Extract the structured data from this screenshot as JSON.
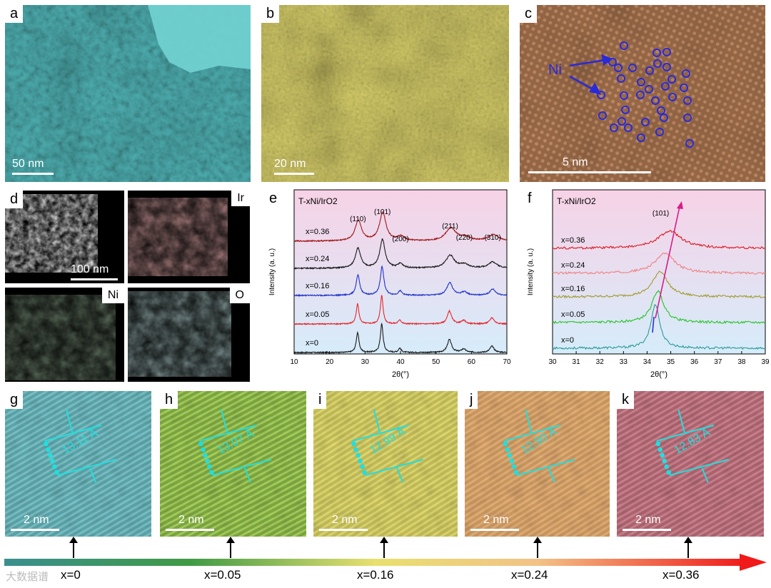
{
  "panels": {
    "a": {
      "label": "a",
      "scale": "50 nm"
    },
    "b": {
      "label": "b",
      "scale": "20 nm"
    },
    "c": {
      "label": "c",
      "scale": "5 nm",
      "annotation": "Ni"
    },
    "d": {
      "label": "d",
      "scale": "100 nm",
      "maps": [
        "Ir",
        "Ni",
        "O"
      ]
    },
    "e": {
      "label": "e"
    },
    "f": {
      "label": "f"
    },
    "g": {
      "label": "g",
      "scale": "2 nm",
      "spacing": "13.11 Å"
    },
    "h": {
      "label": "h",
      "scale": "2 nm",
      "spacing": "13.07 Å"
    },
    "i": {
      "label": "i",
      "scale": "2 nm",
      "spacing": "12.99 Å"
    },
    "j": {
      "label": "j",
      "scale": "2 nm",
      "spacing": "12.90 Å"
    },
    "k": {
      "label": "k",
      "scale": "2 nm",
      "spacing": "12.83 Å"
    }
  },
  "chart_data": [
    {
      "type": "line",
      "panel": "e",
      "title": "T-xNi/IrO2",
      "xlabel": "2θ(°)",
      "ylabel": "Intensity (a. u.)",
      "xlim": [
        10,
        70
      ],
      "xticks": [
        10,
        20,
        30,
        40,
        50,
        60,
        70
      ],
      "peak_labels": [
        "(110)",
        "(101)",
        "(200)",
        "(211)",
        "(220)",
        "(310)"
      ],
      "peak_positions": [
        28.0,
        34.9,
        40.0,
        54.0,
        58.0,
        66.0
      ],
      "series": [
        {
          "name": "x=0",
          "color": "#1a1a1a",
          "peaks": [
            27.9,
            34.7,
            39.8,
            53.8,
            57.8,
            65.8
          ]
        },
        {
          "name": "x=0.05",
          "color": "#e8262b",
          "peaks": [
            27.9,
            34.7,
            39.8,
            53.8,
            57.8,
            65.8
          ]
        },
        {
          "name": "x=0.16",
          "color": "#2233cc",
          "peaks": [
            28.0,
            34.8,
            39.9,
            53.9,
            58.0,
            66.0
          ]
        },
        {
          "name": "x=0.24",
          "color": "#1a1a1a",
          "peaks": [
            28.0,
            34.9,
            40.0,
            54.0,
            58.0,
            66.0
          ]
        },
        {
          "name": "x=0.36",
          "color": "#a01818",
          "peaks": [
            28.1,
            35.0,
            40.1,
            54.2,
            58.2,
            66.2
          ]
        }
      ]
    },
    {
      "type": "line",
      "panel": "f",
      "title": "T-xNi/IrO2",
      "xlabel": "2θ(°)",
      "ylabel": "Intensity (a. u.)",
      "xlim": [
        30,
        39
      ],
      "xticks": [
        30,
        31,
        32,
        33,
        34,
        35,
        36,
        37,
        38,
        39
      ],
      "peak_label": "(101)",
      "series": [
        {
          "name": "x=0",
          "color": "#2a9a9a",
          "peak": 34.35
        },
        {
          "name": "x=0.05",
          "color": "#22c422",
          "peak": 34.45
        },
        {
          "name": "x=0.16",
          "color": "#a09a28",
          "peak": 34.55
        },
        {
          "name": "x=0.24",
          "color": "#f08080",
          "peak": 34.75
        },
        {
          "name": "x=0.36",
          "color": "#e0161e",
          "peak": 34.95
        }
      ]
    }
  ],
  "bottom_axis": {
    "labels": [
      "x=0",
      "x=0.05",
      "x=0.16",
      "x=0.24",
      "x=0.36"
    ]
  },
  "watermark": "大数据谱"
}
